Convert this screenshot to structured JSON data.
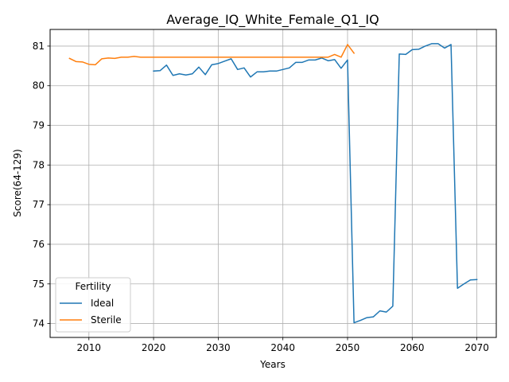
{
  "chart_data": {
    "type": "line",
    "title": "Average_IQ_White_Female_Q1_IQ",
    "xlabel": "Years",
    "ylabel": "Score(64-129)",
    "xlim": [
      2004,
      2073
    ],
    "ylim": [
      73.65,
      81.42
    ],
    "xticks": [
      2010,
      2020,
      2030,
      2040,
      2050,
      2060,
      2070
    ],
    "yticks": [
      74,
      75,
      76,
      77,
      78,
      79,
      80,
      81
    ],
    "grid": true,
    "legend": {
      "title": "Fertility",
      "placement": "bottom-left"
    },
    "series": [
      {
        "name": "Ideal",
        "color": "#1f77b4",
        "x": [
          2020,
          2021,
          2022,
          2023,
          2024,
          2025,
          2026,
          2027,
          2028,
          2029,
          2030,
          2031,
          2032,
          2033,
          2034,
          2035,
          2036,
          2037,
          2038,
          2039,
          2040,
          2041,
          2042,
          2043,
          2044,
          2045,
          2046,
          2047,
          2048,
          2049,
          2050,
          2051,
          2052,
          2053,
          2054,
          2055,
          2056,
          2057,
          2058,
          2059,
          2060,
          2061,
          2062,
          2063,
          2064,
          2065,
          2066,
          2067,
          2068,
          2069,
          2070
        ],
        "y": [
          80.37,
          80.38,
          80.52,
          80.26,
          80.3,
          80.27,
          80.3,
          80.47,
          80.28,
          80.53,
          80.56,
          80.62,
          80.68,
          80.41,
          80.45,
          80.22,
          80.35,
          80.35,
          80.37,
          80.37,
          80.41,
          80.45,
          80.59,
          80.59,
          80.65,
          80.65,
          80.7,
          80.63,
          80.66,
          80.44,
          80.65,
          74.02,
          74.08,
          74.15,
          74.17,
          74.32,
          74.29,
          74.44,
          80.8,
          80.79,
          80.91,
          80.92,
          81.0,
          81.06,
          81.06,
          80.95,
          81.04,
          74.89,
          75.0,
          75.1,
          75.11
        ]
      },
      {
        "name": "Sterile",
        "color": "#ff7f0e",
        "x": [
          2007,
          2008,
          2009,
          2010,
          2011,
          2012,
          2013,
          2014,
          2015,
          2016,
          2017,
          2018,
          2019,
          2020,
          2021,
          2022,
          2023,
          2024,
          2025,
          2026,
          2027,
          2028,
          2029,
          2030,
          2031,
          2032,
          2033,
          2034,
          2035,
          2036,
          2037,
          2038,
          2039,
          2040,
          2041,
          2042,
          2043,
          2044,
          2045,
          2046,
          2047,
          2048,
          2049,
          2050,
          2051
        ],
        "y": [
          80.69,
          80.61,
          80.6,
          80.54,
          80.53,
          80.68,
          80.7,
          80.69,
          80.72,
          80.72,
          80.74,
          80.72,
          80.72,
          80.72,
          80.72,
          80.72,
          80.72,
          80.72,
          80.72,
          80.72,
          80.72,
          80.72,
          80.72,
          80.72,
          80.72,
          80.72,
          80.72,
          80.72,
          80.72,
          80.72,
          80.72,
          80.72,
          80.72,
          80.72,
          80.72,
          80.72,
          80.72,
          80.72,
          80.72,
          80.72,
          80.72,
          80.79,
          80.72,
          81.04,
          80.82
        ]
      }
    ]
  }
}
